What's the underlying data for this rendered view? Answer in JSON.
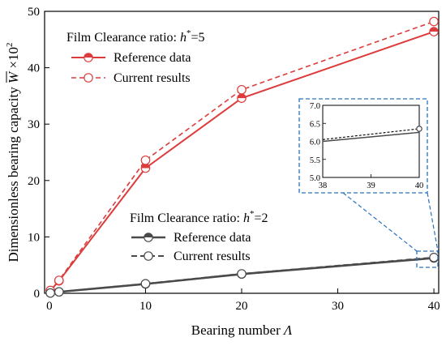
{
  "colors": {
    "h5": "#dc3c3c",
    "h2": "#4a4a4a",
    "inset_frame": "#2a72c0"
  },
  "chart_data": [
    {
      "type": "line",
      "xlabel_text": "Bearing number ",
      "xlabel_symbol": "Λ",
      "ylabel_text": "Dimensionless bearing capacity ",
      "ylabel_symbol": "W",
      "ylabel_suffix": " ×10",
      "ylabel_exp": "2",
      "xlim": [
        -0.5,
        40.5
      ],
      "ylim": [
        0,
        50
      ],
      "xticks": [
        0,
        10,
        20,
        30,
        40
      ],
      "yticks": [
        0,
        10,
        20,
        30,
        40,
        50
      ],
      "groups": [
        {
          "title_text": "Film Clearance ratio: ",
          "title_symbol": "h",
          "title_star": "*",
          "title_value": "=5",
          "color_key": "h5",
          "series": [
            {
              "name": "Reference data",
              "style": "solid",
              "marker": "half",
              "x": [
                0.1,
                1,
                10,
                20,
                40
              ],
              "y": [
                0.5,
                2.2,
                22.2,
                34.6,
                46.4
              ]
            },
            {
              "name": "Current results",
              "style": "dashed",
              "marker": "open",
              "x": [
                0.1,
                1,
                10,
                20,
                40
              ],
              "y": [
                0.5,
                2.3,
                23.6,
                36.1,
                48.2
              ]
            }
          ]
        },
        {
          "title_text": "Film Clearance ratio: ",
          "title_symbol": "h",
          "title_star": "*",
          "title_value": "=2",
          "color_key": "h2",
          "series": [
            {
              "name": "Reference data",
              "style": "solid",
              "marker": "half",
              "x": [
                0.1,
                1,
                10,
                20,
                40
              ],
              "y": [
                0.05,
                0.25,
                1.65,
                3.4,
                6.25
              ]
            },
            {
              "name": "Current results",
              "style": "dashed",
              "marker": "open",
              "x": [
                0.1,
                1,
                10,
                20,
                40
              ],
              "y": [
                0.05,
                0.25,
                1.7,
                3.45,
                6.35
              ]
            }
          ]
        }
      ]
    },
    {
      "type": "line",
      "role": "inset",
      "xlim": [
        38,
        40
      ],
      "ylim": [
        5.0,
        7.0
      ],
      "xticks": [
        38,
        39,
        40
      ],
      "yticks": [
        "5.0",
        "5.5",
        "6.0",
        "6.5",
        "7.0"
      ],
      "series": [
        {
          "style": "solid",
          "color_key": "h2",
          "x": [
            38,
            40
          ],
          "y": [
            6.0,
            6.25
          ]
        },
        {
          "style": "dashed",
          "color_key": "h2",
          "x": [
            38,
            40
          ],
          "y": [
            6.05,
            6.35
          ]
        }
      ]
    }
  ]
}
